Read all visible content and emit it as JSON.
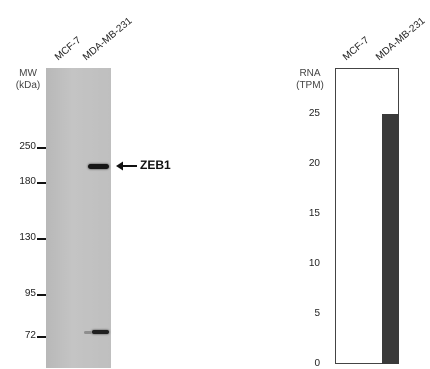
{
  "western_blot": {
    "lanes": [
      "MCF-7",
      "MDA-MB-231"
    ],
    "mw_title": [
      "MW",
      "(kDa)"
    ],
    "mw_markers": [
      {
        "label": "250",
        "kda": 250
      },
      {
        "label": "180",
        "kda": 180
      },
      {
        "label": "130",
        "kda": 130
      },
      {
        "label": "95",
        "kda": 95
      },
      {
        "label": "72",
        "kda": 72
      }
    ],
    "band_label": "ZEB1"
  },
  "chart_data": {
    "type": "bar",
    "categories": [
      "MCF-7",
      "MDA-MB-231"
    ],
    "values": [
      0,
      25
    ],
    "title": "",
    "ylabel": "RNA (TPM)",
    "ylabel_lines": [
      "RNA",
      "(TPM)"
    ],
    "yticks": [
      0,
      5,
      10,
      15,
      20,
      25
    ],
    "ylim": [
      0,
      29.6
    ],
    "bar_color": "#3a3a3a"
  }
}
